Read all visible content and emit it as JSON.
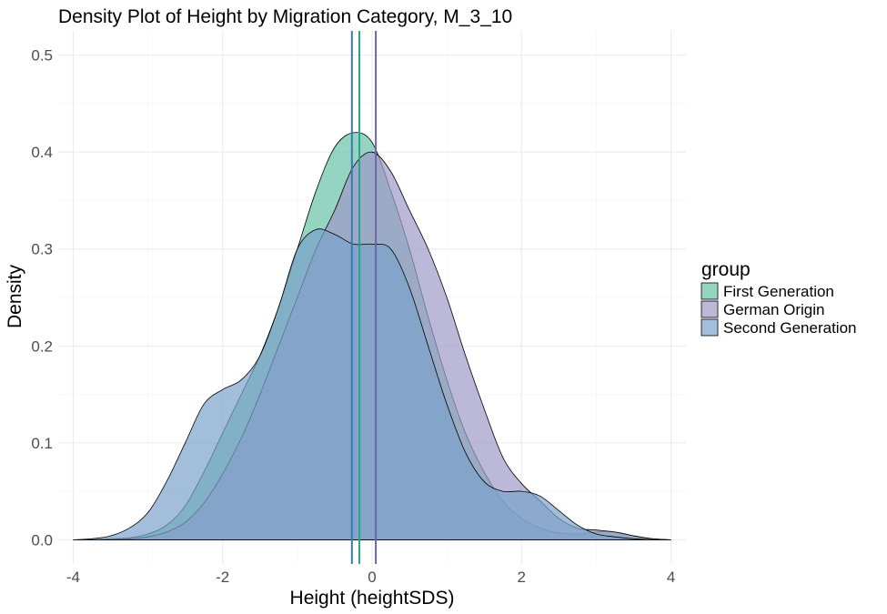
{
  "chart_data": {
    "type": "area",
    "title": "Density Plot of Height by Migration Category, M_3_10",
    "xlabel": "Height (heightSDS)",
    "ylabel": "Density",
    "xlim": [
      -4.2,
      4.2
    ],
    "ylim": [
      -0.025,
      0.525
    ],
    "x_ticks": [
      -4,
      -2,
      0,
      2,
      4
    ],
    "x_tick_labels": [
      "-4",
      "-2",
      "0",
      "2",
      "4"
    ],
    "y_ticks": [
      0.0,
      0.1,
      0.2,
      0.3,
      0.4,
      0.5
    ],
    "y_tick_labels": [
      "0.0",
      "0.1",
      "0.2",
      "0.3",
      "0.4",
      "0.5"
    ],
    "grid": true,
    "legend": {
      "title": "group",
      "position": "right"
    },
    "series": [
      {
        "name": "First Generation",
        "color": "#66c2a5",
        "line_color": "#2ca089",
        "mean": -0.17,
        "x": [
          -4,
          -3.75,
          -3.5,
          -3.25,
          -3,
          -2.75,
          -2.5,
          -2.25,
          -2,
          -1.75,
          -1.5,
          -1.25,
          -1,
          -0.75,
          -0.5,
          -0.25,
          0,
          0.25,
          0.5,
          0.75,
          1,
          1.25,
          1.5,
          1.75,
          2,
          2.25,
          2.5,
          2.75,
          3,
          3.25,
          3.5,
          3.75,
          4
        ],
        "y": [
          0,
          0,
          0.001,
          0.002,
          0.006,
          0.015,
          0.035,
          0.07,
          0.11,
          0.15,
          0.19,
          0.24,
          0.3,
          0.36,
          0.405,
          0.42,
          0.41,
          0.36,
          0.3,
          0.23,
          0.165,
          0.11,
          0.07,
          0.04,
          0.022,
          0.012,
          0.007,
          0.006,
          0.008,
          0.008,
          0.004,
          0.001,
          0
        ]
      },
      {
        "name": "German Origin",
        "color": "#9e9ac8",
        "line_color": "#6c66a8",
        "mean": 0.05,
        "x": [
          -4,
          -3.75,
          -3.5,
          -3.25,
          -3,
          -2.75,
          -2.5,
          -2.25,
          -2,
          -1.75,
          -1.5,
          -1.25,
          -1,
          -0.75,
          -0.5,
          -0.25,
          0,
          0.25,
          0.5,
          0.75,
          1,
          1.25,
          1.5,
          1.75,
          2,
          2.25,
          2.5,
          2.75,
          3,
          3.25,
          3.5,
          3.75,
          4
        ],
        "y": [
          0,
          0,
          0,
          0.001,
          0.003,
          0.008,
          0.018,
          0.038,
          0.068,
          0.105,
          0.15,
          0.2,
          0.25,
          0.3,
          0.34,
          0.385,
          0.4,
          0.38,
          0.34,
          0.3,
          0.25,
          0.19,
          0.135,
          0.085,
          0.058,
          0.04,
          0.022,
          0.012,
          0.01,
          0.008,
          0.004,
          0.001,
          0
        ]
      },
      {
        "name": "Second Generation",
        "color": "#7ba3cb",
        "line_color": "#3c78b4",
        "mean": -0.27,
        "x": [
          -4,
          -3.75,
          -3.5,
          -3.25,
          -3,
          -2.75,
          -2.5,
          -2.25,
          -2,
          -1.75,
          -1.5,
          -1.25,
          -1,
          -0.75,
          -0.5,
          -0.25,
          0,
          0.25,
          0.5,
          0.75,
          1,
          1.25,
          1.5,
          1.75,
          2,
          2.25,
          2.5,
          2.75,
          3,
          3.25,
          3.5,
          3.75,
          4
        ],
        "y": [
          0,
          0.001,
          0.004,
          0.012,
          0.028,
          0.06,
          0.1,
          0.14,
          0.155,
          0.165,
          0.19,
          0.24,
          0.3,
          0.32,
          0.315,
          0.305,
          0.305,
          0.3,
          0.26,
          0.2,
          0.14,
          0.09,
          0.06,
          0.05,
          0.05,
          0.045,
          0.03,
          0.015,
          0.006,
          0.003,
          0.001,
          0,
          0
        ]
      }
    ]
  }
}
